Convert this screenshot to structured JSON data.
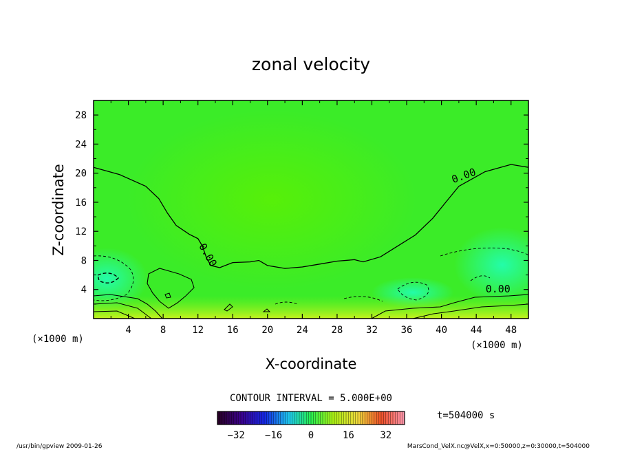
{
  "chart_data": {
    "type": "heatmap",
    "title": "zonal velocity",
    "xlabel": "X-coordinate",
    "ylabel": "Z-coordinate",
    "x_unit": "(×1000 m)",
    "y_unit": "(×1000 m)",
    "xlim": [
      0,
      50
    ],
    "ylim": [
      0,
      30
    ],
    "x_ticks": [
      "4",
      "8",
      "12",
      "16",
      "20",
      "24",
      "28",
      "32",
      "36",
      "40",
      "44",
      "48"
    ],
    "y_ticks": [
      "4",
      "8",
      "12",
      "16",
      "20",
      "24",
      "28"
    ],
    "contour_interval_text": "CONTOUR INTERVAL = 5.000E+00",
    "contour_labels": [
      {
        "text": "0.00",
        "x": 12.8,
        "z": 8.5,
        "rotate": 60
      },
      {
        "text": "0.00",
        "x": 42.7,
        "z": 19.2,
        "rotate": -20
      },
      {
        "text": "0.00",
        "x": 46.5,
        "z": 3.6,
        "rotate": 0
      }
    ],
    "zero_contour": [
      [
        0,
        20.8
      ],
      [
        3,
        19.8
      ],
      [
        6,
        18.2
      ],
      [
        7.5,
        16.5
      ],
      [
        8.5,
        14.5
      ],
      [
        9.5,
        12.8
      ],
      [
        11,
        11.6
      ],
      [
        12,
        11
      ],
      [
        12.5,
        10
      ],
      [
        13,
        8.3
      ],
      [
        13.5,
        7.3
      ],
      [
        14.5,
        7
      ],
      [
        16,
        7.7
      ],
      [
        18,
        7.8
      ],
      [
        19,
        8
      ],
      [
        20,
        7.3
      ],
      [
        22,
        6.9
      ],
      [
        24,
        7.1
      ],
      [
        26,
        7.5
      ],
      [
        28,
        7.9
      ],
      [
        30,
        8.1
      ],
      [
        31,
        7.8
      ],
      [
        33,
        8.5
      ],
      [
        35,
        10
      ],
      [
        37,
        11.5
      ],
      [
        39,
        13.8
      ],
      [
        40.5,
        16
      ],
      [
        42,
        18.2
      ],
      [
        45,
        20.2
      ],
      [
        48,
        21.2
      ],
      [
        50,
        20.8
      ]
    ],
    "colorbar": {
      "ticks": [
        "−32",
        "−16",
        "0",
        "16",
        "32"
      ],
      "range": [
        -40,
        40
      ],
      "time_label": "t=504000 s"
    }
  },
  "footer": {
    "left": "/usr/bin/gpview   2009-01-26",
    "right": "MarsCond_VelX.nc@VelX,x=0:50000,z=0:30000,t=504000"
  },
  "colors": {
    "field_base": "#3bec28",
    "field_center": "#55f00a",
    "field_cyan": "#2dfe9a",
    "field_bottom": "#c8f51e"
  }
}
